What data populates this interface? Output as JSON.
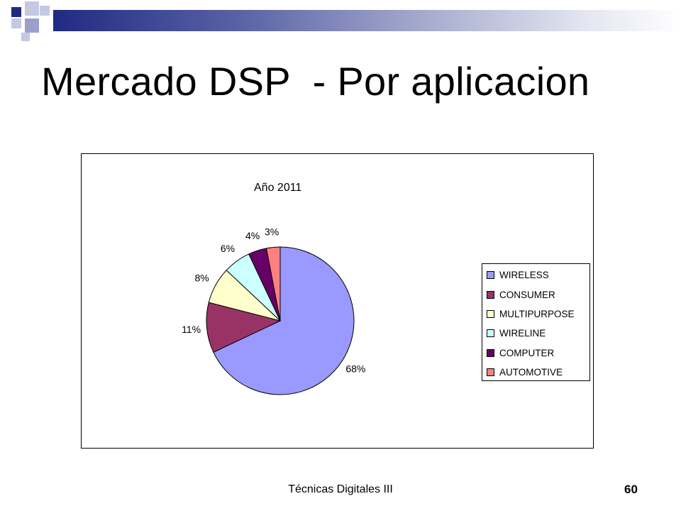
{
  "slide": {
    "title": "Mercado DSP  - Por aplicacion",
    "footer": "Técnicas Digitales III",
    "page_number": "60"
  },
  "colors": {
    "accent_dark": "#202a82",
    "accent_light": "#a8adcf"
  },
  "chart_data": {
    "type": "pie",
    "title": "Año 2011",
    "legend_position": "right",
    "categories": [
      "WIRELESS",
      "CONSUMER",
      "MULTIPURPOSE",
      "WIRELINE",
      "COMPUTER",
      "AUTOMOTIVE"
    ],
    "values": [
      68,
      11,
      8,
      6,
      4,
      3
    ],
    "labels": [
      "68%",
      "11%",
      "8%",
      "6%",
      "4%",
      "3%"
    ],
    "colors": [
      "#9999ff",
      "#993366",
      "#ffffcc",
      "#ccffff",
      "#660066",
      "#ff8080"
    ]
  }
}
